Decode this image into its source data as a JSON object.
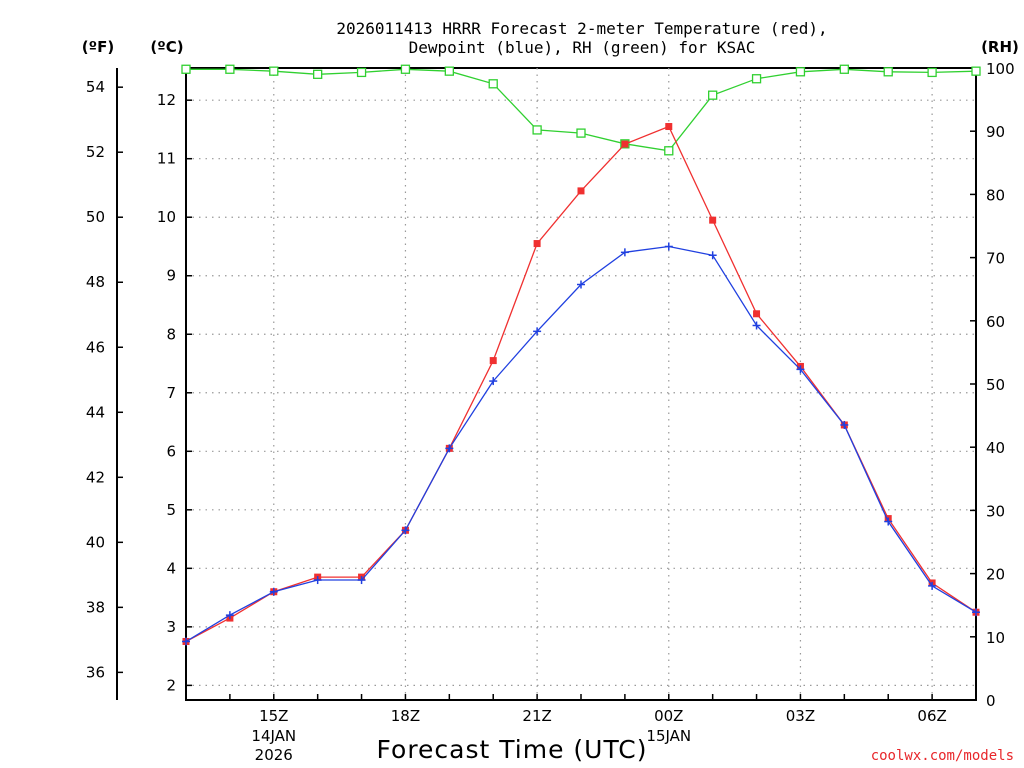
{
  "chart_data": {
    "type": "line",
    "title_line1": "2026011413 HRRR Forecast 2-meter Temperature (red),",
    "title_line2": "Dewpoint (blue), RH (green) for KSAC",
    "xlabel": "Forecast Time (UTC)",
    "credit": "coolwx.com/models",
    "units": {
      "fahrenheit": "(ºF)",
      "celsius": "(ºC)",
      "rh": "(RH)"
    },
    "hours": [
      13,
      14,
      15,
      16,
      17,
      18,
      19,
      20,
      21,
      22,
      23,
      0,
      1,
      2,
      3,
      4,
      5,
      6,
      7
    ],
    "x_ticks": [
      {
        "hour_index": 2,
        "label": "15Z",
        "sub1": "14JAN",
        "sub2": "2026"
      },
      {
        "hour_index": 5,
        "label": "18Z",
        "sub1": "",
        "sub2": ""
      },
      {
        "hour_index": 8,
        "label": "21Z",
        "sub1": "",
        "sub2": ""
      },
      {
        "hour_index": 11,
        "label": "00Z",
        "sub1": "15JAN",
        "sub2": ""
      },
      {
        "hour_index": 14,
        "label": "03Z",
        "sub1": "",
        "sub2": ""
      },
      {
        "hour_index": 17,
        "label": "06Z",
        "sub1": "",
        "sub2": ""
      }
    ],
    "celsius_axis": {
      "range": [
        1.75,
        12.55
      ],
      "ticks": [
        2,
        3,
        4,
        5,
        6,
        7,
        8,
        9,
        10,
        11,
        12
      ]
    },
    "fahrenheit_ticks": [
      36,
      38,
      40,
      42,
      44,
      46,
      48,
      50,
      52,
      54
    ],
    "rh_axis": {
      "range": [
        0,
        100
      ],
      "ticks": [
        0,
        10,
        20,
        30,
        40,
        50,
        60,
        70,
        80,
        90,
        100
      ]
    },
    "series": [
      {
        "name": "Temperature",
        "unit": "C",
        "color": "#f03030",
        "values": [
          2.75,
          3.15,
          3.6,
          3.85,
          3.85,
          4.65,
          6.05,
          7.55,
          9.55,
          10.45,
          11.25,
          11.55,
          9.95,
          8.35,
          7.45,
          6.45,
          4.85,
          3.75,
          3.25
        ]
      },
      {
        "name": "Dewpoint",
        "unit": "C",
        "color": "#2040e0",
        "values": [
          2.75,
          3.2,
          3.6,
          3.8,
          3.8,
          4.65,
          6.05,
          7.2,
          8.05,
          8.85,
          9.4,
          9.5,
          9.35,
          8.15,
          7.4,
          6.45,
          4.8,
          3.7,
          3.25
        ]
      },
      {
        "name": "RH",
        "unit": "%",
        "color": "#30d030",
        "values": [
          99.8,
          99.8,
          99.5,
          99.0,
          99.3,
          99.8,
          99.5,
          97.5,
          90.2,
          89.7,
          88.0,
          86.9,
          95.7,
          98.3,
          99.4,
          99.8,
          99.4,
          99.3,
          99.5
        ]
      }
    ]
  }
}
